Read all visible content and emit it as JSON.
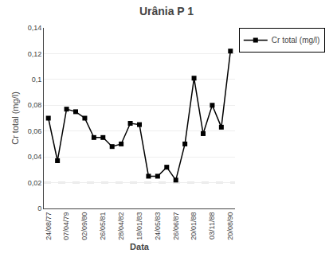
{
  "chart_data": {
    "type": "line",
    "title": "Urânia P 1",
    "x_label": "Data",
    "y_label": "Cr total (mg/l)",
    "categories": [
      "24/08/77",
      null,
      "07/04/79",
      null,
      "02/09/80",
      null,
      "26/05/81",
      null,
      "28/04/82",
      null,
      "18/01/83",
      null,
      "24/05/83",
      null,
      "26/06/87",
      null,
      "20/01/88",
      null,
      "03/11/88",
      null,
      "20/08/90"
    ],
    "series": [
      {
        "name": "Cr total (mg/l)",
        "color": "#000000",
        "marker": "square",
        "line_style": "solid",
        "values": [
          0.07,
          0.037,
          0.077,
          0.075,
          0.07,
          0.055,
          0.055,
          0.048,
          0.05,
          0.066,
          0.065,
          0.025,
          0.025,
          0.032,
          0.022,
          0.05,
          0.101,
          0.058,
          0.08,
          0.063,
          0.122
        ]
      }
    ],
    "hlines": [
      {
        "value": 0.02,
        "color": "#aaaaaa",
        "line_style": "dashed"
      }
    ],
    "ylim": [
      0,
      0.14
    ],
    "yticks": [
      0,
      {
        "value": 0.02,
        "label": "0,02"
      },
      {
        "value": 0.04,
        "label": "0,04"
      },
      {
        "value": 0.06,
        "label": "0,06"
      },
      {
        "value": 0.08,
        "label": "0,08"
      },
      {
        "value": 0.1,
        "label": "0,1"
      },
      {
        "value": 0.12,
        "label": "0,12"
      },
      {
        "value": 0.14,
        "label": "0,14"
      }
    ],
    "grid": "y",
    "legend": "right"
  }
}
